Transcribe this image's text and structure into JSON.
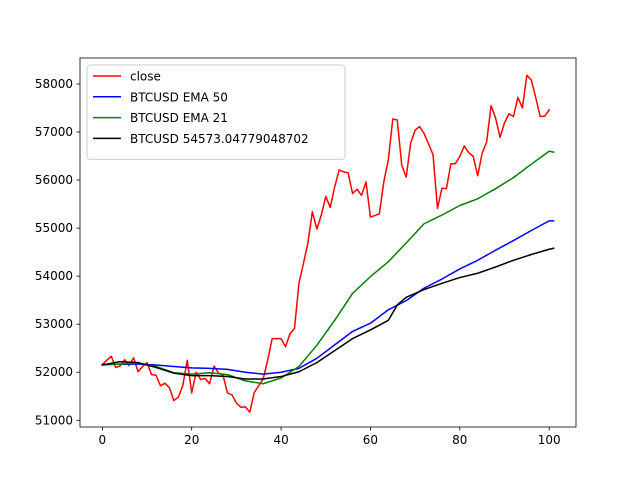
{
  "chart_data": {
    "type": "line",
    "title": "",
    "xlabel": "",
    "ylabel": "",
    "xlim": [
      -5,
      106
    ],
    "ylim": [
      50860,
      58540
    ],
    "xticks": [
      0,
      20,
      40,
      60,
      80,
      100
    ],
    "yticks": [
      51000,
      52000,
      53000,
      54000,
      55000,
      56000,
      57000,
      58000
    ],
    "grid": false,
    "legend_position": "upper-left",
    "series": [
      {
        "name": "close",
        "color": "#ff0000",
        "points": [
          [
            0,
            52160
          ],
          [
            1,
            52250
          ],
          [
            2,
            52330
          ],
          [
            3,
            52100
          ],
          [
            4,
            52130
          ],
          [
            5,
            52260
          ],
          [
            6,
            52140
          ],
          [
            7,
            52300
          ],
          [
            8,
            52010
          ],
          [
            9,
            52120
          ],
          [
            10,
            52200
          ],
          [
            11,
            51950
          ],
          [
            12,
            51940
          ],
          [
            13,
            51720
          ],
          [
            14,
            51770
          ],
          [
            15,
            51680
          ],
          [
            16,
            51410
          ],
          [
            17,
            51480
          ],
          [
            18,
            51720
          ],
          [
            19,
            52250
          ],
          [
            20,
            51570
          ],
          [
            21,
            52000
          ],
          [
            22,
            51850
          ],
          [
            23,
            51870
          ],
          [
            24,
            51760
          ],
          [
            25,
            52130
          ],
          [
            26,
            51980
          ],
          [
            27,
            51940
          ],
          [
            28,
            51570
          ],
          [
            29,
            51530
          ],
          [
            30,
            51360
          ],
          [
            31,
            51270
          ],
          [
            32,
            51280
          ],
          [
            33,
            51170
          ],
          [
            34,
            51580
          ],
          [
            35,
            51720
          ],
          [
            36,
            51860
          ],
          [
            37,
            52250
          ],
          [
            38,
            52700
          ],
          [
            39,
            52700
          ],
          [
            40,
            52700
          ],
          [
            41,
            52530
          ],
          [
            42,
            52800
          ],
          [
            43,
            52910
          ],
          [
            44,
            53850
          ],
          [
            45,
            54260
          ],
          [
            46,
            54690
          ],
          [
            47,
            55340
          ],
          [
            48,
            54980
          ],
          [
            49,
            55270
          ],
          [
            50,
            55660
          ],
          [
            51,
            55430
          ],
          [
            52,
            55860
          ],
          [
            53,
            56210
          ],
          [
            54,
            56170
          ],
          [
            55,
            56150
          ],
          [
            56,
            55720
          ],
          [
            57,
            55810
          ],
          [
            58,
            55680
          ],
          [
            59,
            55960
          ],
          [
            60,
            55230
          ],
          [
            61,
            55260
          ],
          [
            62,
            55300
          ],
          [
            63,
            55970
          ],
          [
            64,
            56420
          ],
          [
            65,
            57270
          ],
          [
            66,
            57250
          ],
          [
            67,
            56310
          ],
          [
            68,
            56060
          ],
          [
            69,
            56770
          ],
          [
            70,
            57040
          ],
          [
            71,
            57110
          ],
          [
            72,
            56970
          ],
          [
            73,
            56750
          ],
          [
            74,
            56530
          ],
          [
            75,
            55410
          ],
          [
            76,
            55830
          ],
          [
            77,
            55820
          ],
          [
            78,
            56340
          ],
          [
            79,
            56340
          ],
          [
            80,
            56490
          ],
          [
            81,
            56710
          ],
          [
            82,
            56570
          ],
          [
            83,
            56490
          ],
          [
            84,
            56090
          ],
          [
            85,
            56560
          ],
          [
            86,
            56790
          ],
          [
            87,
            57550
          ],
          [
            88,
            57290
          ],
          [
            89,
            56890
          ],
          [
            90,
            57190
          ],
          [
            91,
            57380
          ],
          [
            92,
            57320
          ],
          [
            93,
            57720
          ],
          [
            94,
            57500
          ],
          [
            95,
            58180
          ],
          [
            96,
            58080
          ],
          [
            97,
            57710
          ],
          [
            98,
            57320
          ],
          [
            99,
            57330
          ],
          [
            100,
            57460
          ]
        ]
      },
      {
        "name": "BTCUSD EMA 50",
        "color": "#0000ff",
        "points": [
          [
            0,
            52160
          ],
          [
            4,
            52165
          ],
          [
            8,
            52170
          ],
          [
            12,
            52150
          ],
          [
            16,
            52120
          ],
          [
            20,
            52090
          ],
          [
            24,
            52080
          ],
          [
            28,
            52060
          ],
          [
            32,
            52000
          ],
          [
            36,
            51960
          ],
          [
            40,
            52000
          ],
          [
            44,
            52080
          ],
          [
            48,
            52290
          ],
          [
            52,
            52570
          ],
          [
            56,
            52850
          ],
          [
            60,
            53020
          ],
          [
            64,
            53300
          ],
          [
            68,
            53490
          ],
          [
            72,
            53750
          ],
          [
            76,
            53940
          ],
          [
            80,
            54150
          ],
          [
            84,
            54330
          ],
          [
            88,
            54540
          ],
          [
            92,
            54740
          ],
          [
            96,
            54950
          ],
          [
            100,
            55150
          ],
          [
            101,
            55150
          ]
        ]
      },
      {
        "name": "BTCUSD EMA 21",
        "color": "#008000",
        "points": [
          [
            0,
            52150
          ],
          [
            4,
            52170
          ],
          [
            8,
            52190
          ],
          [
            12,
            52120
          ],
          [
            16,
            51990
          ],
          [
            20,
            51960
          ],
          [
            24,
            51990
          ],
          [
            28,
            51950
          ],
          [
            32,
            51820
          ],
          [
            36,
            51760
          ],
          [
            40,
            51880
          ],
          [
            44,
            52120
          ],
          [
            48,
            52560
          ],
          [
            52,
            53080
          ],
          [
            56,
            53640
          ],
          [
            60,
            53990
          ],
          [
            64,
            54300
          ],
          [
            68,
            54690
          ],
          [
            72,
            55090
          ],
          [
            76,
            55270
          ],
          [
            80,
            55470
          ],
          [
            84,
            55610
          ],
          [
            88,
            55820
          ],
          [
            92,
            56050
          ],
          [
            96,
            56330
          ],
          [
            100,
            56600
          ],
          [
            101,
            56580
          ]
        ]
      },
      {
        "name": "BTCUSD 54573.04779048702",
        "color": "#000000",
        "points": [
          [
            0,
            52150
          ],
          [
            4,
            52220
          ],
          [
            8,
            52200
          ],
          [
            12,
            52100
          ],
          [
            16,
            51980
          ],
          [
            20,
            51930
          ],
          [
            24,
            51930
          ],
          [
            28,
            51910
          ],
          [
            32,
            51860
          ],
          [
            36,
            51860
          ],
          [
            40,
            51910
          ],
          [
            44,
            52010
          ],
          [
            48,
            52200
          ],
          [
            52,
            52450
          ],
          [
            56,
            52700
          ],
          [
            60,
            52880
          ],
          [
            64,
            53080
          ],
          [
            66,
            53400
          ],
          [
            68,
            53560
          ],
          [
            72,
            53720
          ],
          [
            76,
            53850
          ],
          [
            80,
            53970
          ],
          [
            84,
            54060
          ],
          [
            88,
            54190
          ],
          [
            92,
            54330
          ],
          [
            96,
            54450
          ],
          [
            100,
            54560
          ],
          [
            101,
            54580
          ]
        ]
      }
    ]
  }
}
